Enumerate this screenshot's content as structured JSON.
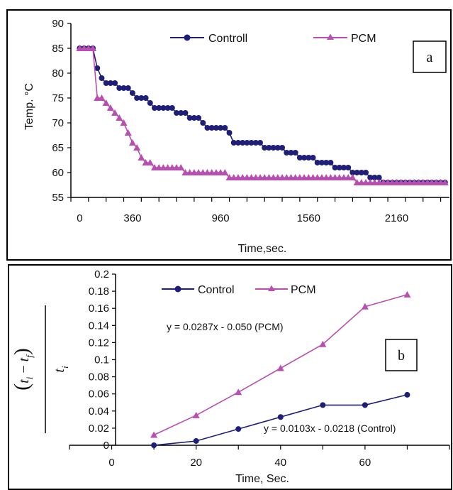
{
  "chart_data": [
    {
      "type": "line",
      "label": "a",
      "xlabel": "Time,sec.",
      "ylabel": "Temp. °C",
      "x_ticks": [
        "0",
        "360",
        "960",
        "1560",
        "2160"
      ],
      "x_tick_values": [
        0,
        360,
        960,
        1560,
        2160
      ],
      "y_ticks": [
        "55",
        "60",
        "65",
        "70",
        "75",
        "80",
        "85",
        "90"
      ],
      "xlim": [
        -60,
        2520
      ],
      "ylim": [
        55,
        90
      ],
      "legend_position": "top",
      "series": [
        {
          "name": "Controll",
          "color": "#1f1f7a",
          "marker": "circle",
          "x": [
            0,
            30,
            60,
            90,
            120,
            150,
            180,
            210,
            240,
            270,
            300,
            330,
            360,
            390,
            420,
            450,
            480,
            510,
            540,
            570,
            600,
            630,
            660,
            690,
            720,
            750,
            780,
            810,
            840,
            870,
            900,
            930,
            960,
            990,
            1020,
            1050,
            1080,
            1110,
            1140,
            1170,
            1200,
            1230,
            1260,
            1290,
            1320,
            1350,
            1380,
            1410,
            1440,
            1470,
            1500,
            1530,
            1560,
            1590,
            1620,
            1650,
            1680,
            1710,
            1740,
            1770,
            1800,
            1830,
            1860,
            1890,
            1920,
            1950,
            1980,
            2010,
            2040,
            2070,
            2100,
            2130,
            2160,
            2190,
            2220,
            2250,
            2280,
            2310,
            2340,
            2370,
            2400,
            2430,
            2460,
            2490
          ],
          "y": [
            85,
            85,
            85,
            85,
            81,
            79,
            78,
            78,
            78,
            77,
            77,
            77,
            76,
            75,
            75,
            75,
            74,
            73,
            73,
            73,
            73,
            73,
            72,
            72,
            72,
            71,
            71,
            71,
            70,
            69,
            69,
            69,
            69,
            69,
            68,
            66,
            66,
            66,
            66,
            66,
            66,
            66,
            65,
            65,
            65,
            65,
            65,
            64,
            64,
            64,
            63,
            63,
            63,
            63,
            62,
            62,
            62,
            62,
            61,
            61,
            61,
            61,
            60,
            60,
            60,
            60,
            59,
            59,
            59,
            58,
            58,
            58,
            58,
            58,
            58,
            58,
            58,
            58,
            58,
            58,
            58,
            58,
            58,
            58
          ]
        },
        {
          "name": "PCM",
          "color": "#b84fb0",
          "marker": "triangle",
          "x": [
            0,
            30,
            60,
            90,
            120,
            150,
            180,
            210,
            240,
            270,
            300,
            330,
            360,
            390,
            420,
            450,
            480,
            510,
            540,
            570,
            600,
            630,
            660,
            690,
            720,
            750,
            780,
            810,
            840,
            870,
            900,
            930,
            960,
            990,
            1020,
            1050,
            1080,
            1110,
            1140,
            1170,
            1200,
            1230,
            1260,
            1290,
            1320,
            1350,
            1380,
            1410,
            1440,
            1470,
            1500,
            1530,
            1560,
            1590,
            1620,
            1650,
            1680,
            1710,
            1740,
            1770,
            1800,
            1830,
            1860,
            1890,
            1920,
            1950,
            1980,
            2010,
            2040,
            2070,
            2100,
            2130,
            2160,
            2190,
            2220,
            2250,
            2280,
            2310,
            2340,
            2370,
            2400,
            2430,
            2460,
            2490
          ],
          "y": [
            85,
            85,
            85,
            85,
            75,
            75,
            74,
            73,
            72,
            71,
            70,
            68,
            66,
            65,
            63,
            62,
            62,
            61,
            61,
            61,
            61,
            61,
            61,
            61,
            60,
            60,
            60,
            60,
            60,
            60,
            60,
            60,
            60,
            60,
            59,
            59,
            59,
            59,
            59,
            59,
            59,
            59,
            59,
            59,
            59,
            59,
            59,
            59,
            59,
            59,
            59,
            59,
            59,
            59,
            59,
            59,
            59,
            59,
            59,
            59,
            59,
            59,
            59,
            58,
            58,
            58,
            58,
            58,
            58,
            58,
            58,
            58,
            58,
            58,
            58,
            58,
            58,
            58,
            58,
            58,
            58,
            58,
            58,
            58
          ]
        }
      ]
    },
    {
      "type": "line",
      "label": "b",
      "xlabel": "Time, Sec.",
      "ylabel_numerator": "(t_i − t_f)",
      "ylabel_numerator_parts": [
        "(",
        "t",
        "i",
        " − ",
        "t",
        "f",
        ")"
      ],
      "ylabel_denominator": "t_i",
      "ylabel_denominator_parts": [
        "t",
        "i"
      ],
      "x_ticks": [
        "0",
        "20",
        "40",
        "60"
      ],
      "x_tick_values": [
        0,
        20,
        40,
        60
      ],
      "y_ticks": [
        "0",
        "0.02",
        "0.04",
        "0.06",
        "0.08",
        "0.1",
        "0.12",
        "0.14",
        "0.16",
        "0.18",
        "0.2"
      ],
      "xlim": [
        -10,
        80
      ],
      "ylim": [
        0,
        0.2
      ],
      "legend_position": "top",
      "annotations": [
        "y = 0.0287x - 0.050 (PCM)",
        "y = 0.0103x - 0.0218 (Control)"
      ],
      "series": [
        {
          "name": "Control",
          "color": "#1f1f7a",
          "marker": "circle",
          "x": [
            10,
            20,
            30,
            40,
            50,
            60,
            70
          ],
          "y": [
            0.0,
            0.005,
            0.019,
            0.033,
            0.047,
            0.047,
            0.059
          ]
        },
        {
          "name": "PCM",
          "color": "#b84fb0",
          "marker": "triangle",
          "x": [
            10,
            20,
            30,
            40,
            50,
            60,
            70
          ],
          "y": [
            0.012,
            0.035,
            0.062,
            0.09,
            0.118,
            0.162,
            0.176
          ]
        }
      ]
    }
  ]
}
